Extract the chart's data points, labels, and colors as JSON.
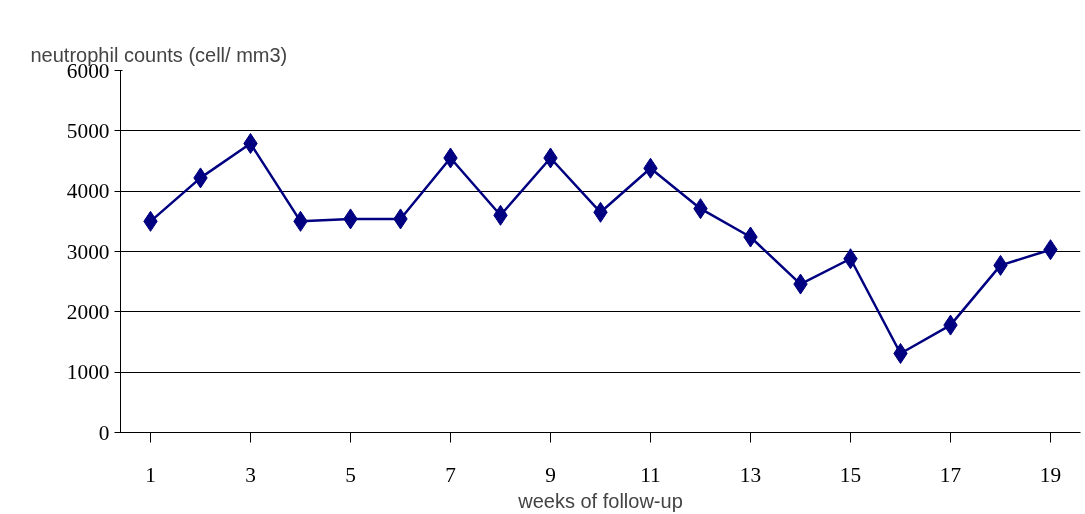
{
  "chart_data": {
    "type": "line",
    "ylabel": "neutrophil counts (cell/ mm3)",
    "xlabel": "weeks of follow-up",
    "x": [
      1,
      2,
      3,
      4,
      5,
      6,
      7,
      8,
      9,
      10,
      11,
      12,
      13,
      14,
      15,
      16,
      17,
      18,
      19
    ],
    "series": [
      {
        "color": "#000080",
        "values": [
          3500,
          4220,
          4790,
          3500,
          3540,
          3540,
          4550,
          3600,
          4550,
          3650,
          4380,
          3710,
          3240,
          2460,
          2880,
          1310,
          1780,
          2770,
          3030
        ]
      }
    ],
    "xlim": [
      0.4,
      19.6
    ],
    "xticks": [
      1,
      3,
      5,
      7,
      9,
      11,
      13,
      15,
      17,
      19
    ],
    "ylim": [
      0,
      6000
    ],
    "yticks": [
      0,
      1000,
      2000,
      3000,
      4000,
      5000,
      6000
    ],
    "grid": "y",
    "marker": "diamond",
    "line_style": "solid"
  }
}
